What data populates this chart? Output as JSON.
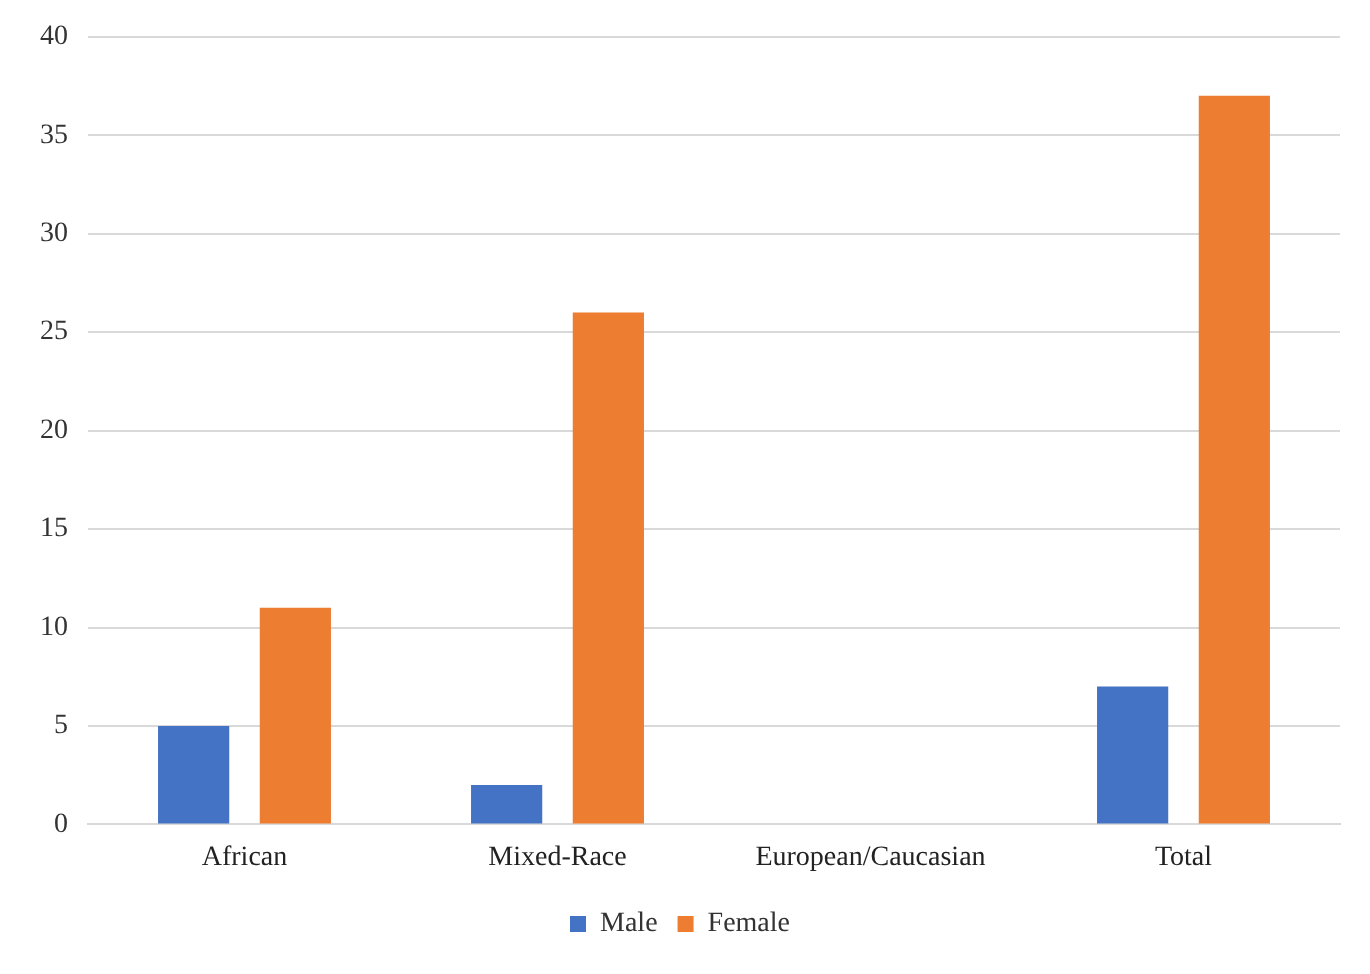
{
  "chart_data": {
    "type": "bar",
    "categories": [
      "African",
      "Mixed-Race",
      "European/Caucasian",
      "Total"
    ],
    "series": [
      {
        "name": "Male",
        "color": "#4472c4",
        "values": [
          5,
          2,
          0,
          7
        ]
      },
      {
        "name": "Female",
        "color": "#ed7d31",
        "values": [
          11,
          26,
          0,
          37
        ]
      }
    ],
    "ylim": [
      0,
      40
    ],
    "yticks": [
      0,
      5,
      10,
      15,
      20,
      25,
      30,
      35,
      40
    ],
    "grid": "y",
    "legend": "bottom"
  }
}
